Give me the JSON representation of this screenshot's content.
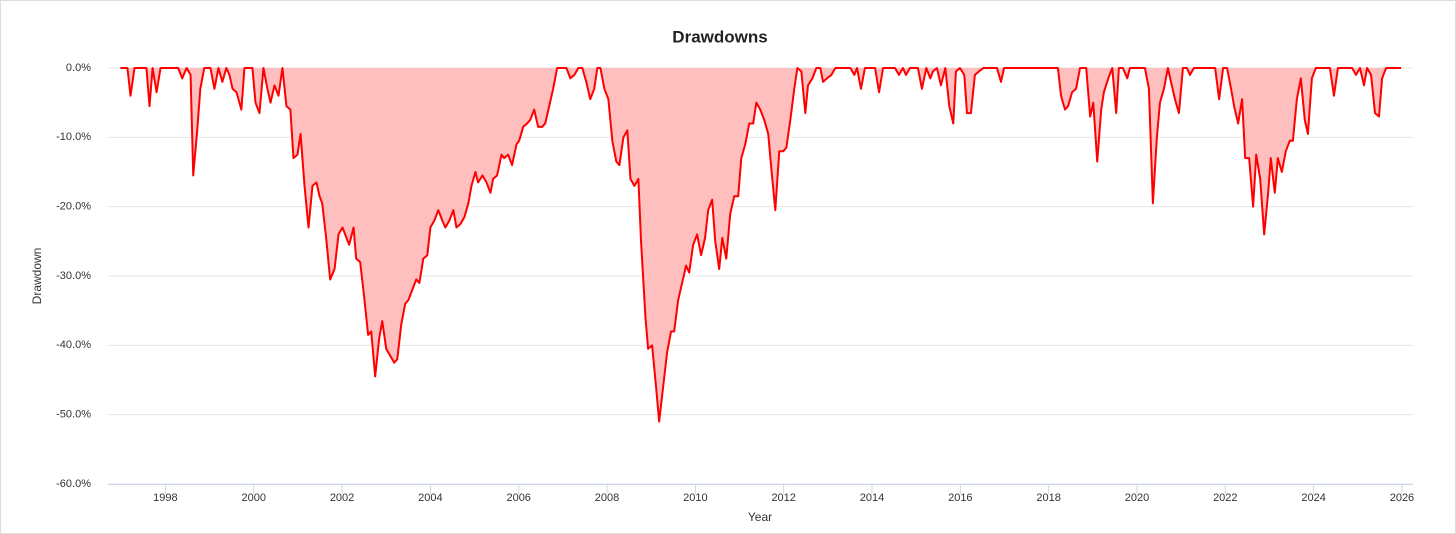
{
  "chart_data": {
    "type": "area",
    "title": "Drawdowns",
    "x_label": "Year",
    "y_label": "Drawdown",
    "color": "#ff0000",
    "fill_color": "#ffbfbf",
    "grid": true,
    "xlim": [
      1996.7,
      2026.25
    ],
    "xticks": [
      1998,
      2000,
      2002,
      2004,
      2006,
      2008,
      2010,
      2012,
      2014,
      2016,
      2018,
      2020,
      2022,
      2024,
      2026
    ],
    "ylim": [
      -60,
      0
    ],
    "yticks": [
      {
        "value": 0,
        "label": "0.0%"
      },
      {
        "value": -10,
        "label": "-10.0%"
      },
      {
        "value": -20,
        "label": "-20.0%"
      },
      {
        "value": -30,
        "label": "-30.0%"
      },
      {
        "value": -40,
        "label": "-40.0%"
      },
      {
        "value": -50,
        "label": "-50.0%"
      },
      {
        "value": -60,
        "label": "-60.0%"
      }
    ],
    "x": [
      1996.98,
      1997.14,
      1997.21,
      1997.3,
      1997.57,
      1997.64,
      1997.71,
      1997.8,
      1997.89,
      1998.29,
      1998.38,
      1998.48,
      1998.57,
      1998.63,
      1998.72,
      1998.79,
      1998.88,
      1999.02,
      1999.11,
      1999.2,
      1999.29,
      1999.38,
      1999.45,
      1999.52,
      1999.61,
      1999.72,
      1999.79,
      1999.97,
      2000.04,
      2000.13,
      2000.22,
      2000.31,
      2000.38,
      2000.47,
      2000.56,
      2000.65,
      2000.74,
      2000.83,
      2000.9,
      2000.99,
      2001.06,
      2001.15,
      2001.24,
      2001.33,
      2001.42,
      2001.49,
      2001.55,
      2001.64,
      2001.73,
      2001.83,
      2001.92,
      2002.01,
      2002.07,
      2002.16,
      2002.26,
      2002.32,
      2002.41,
      2002.5,
      2002.59,
      2002.66,
      2002.75,
      2002.84,
      2002.91,
      2003.0,
      2003.09,
      2003.18,
      2003.25,
      2003.34,
      2003.43,
      2003.5,
      2003.59,
      2003.68,
      2003.75,
      2003.84,
      2003.93,
      2004.0,
      2004.09,
      2004.18,
      2004.27,
      2004.34,
      2004.43,
      2004.52,
      2004.59,
      2004.68,
      2004.77,
      2004.86,
      2004.93,
      2005.02,
      2005.08,
      2005.18,
      2005.27,
      2005.36,
      2005.42,
      2005.51,
      2005.61,
      2005.67,
      2005.76,
      2005.85,
      2005.95,
      2006.01,
      2006.1,
      2006.19,
      2006.26,
      2006.35,
      2006.44,
      2006.53,
      2006.6,
      2006.69,
      2006.78,
      2006.87,
      2007.08,
      2007.17,
      2007.26,
      2007.35,
      2007.44,
      2007.53,
      2007.62,
      2007.71,
      2007.78,
      2007.85,
      2007.94,
      2008.03,
      2008.12,
      2008.21,
      2008.28,
      2008.37,
      2008.46,
      2008.53,
      2008.62,
      2008.71,
      2008.77,
      2008.87,
      2008.93,
      2009.02,
      2009.11,
      2009.18,
      2009.27,
      2009.36,
      2009.45,
      2009.52,
      2009.61,
      2009.7,
      2009.79,
      2009.86,
      2009.95,
      2010.04,
      2010.13,
      2010.22,
      2010.29,
      2010.38,
      2010.45,
      2010.54,
      2010.61,
      2010.7,
      2010.79,
      2010.88,
      2010.97,
      2011.04,
      2011.13,
      2011.22,
      2011.31,
      2011.38,
      2011.47,
      2011.56,
      2011.65,
      2011.72,
      2011.81,
      2011.9,
      2011.99,
      2012.06,
      2012.15,
      2012.24,
      2012.31,
      2012.4,
      2012.49,
      2012.55,
      2012.65,
      2012.74,
      2012.83,
      2012.89,
      2012.98,
      2013.08,
      2013.17,
      2013.51,
      2013.6,
      2013.66,
      2013.75,
      2013.84,
      2014.07,
      2014.16,
      2014.25,
      2014.52,
      2014.61,
      2014.7,
      2014.77,
      2014.86,
      2015.04,
      2015.13,
      2015.23,
      2015.32,
      2015.38,
      2015.47,
      2015.56,
      2015.66,
      2015.75,
      2015.84,
      2015.9,
      2015.99,
      2016.09,
      2016.15,
      2016.24,
      2016.33,
      2016.42,
      2016.52,
      2016.83,
      2016.92,
      2016.99,
      2018.21,
      2018.28,
      2018.37,
      2018.44,
      2018.53,
      2018.62,
      2018.71,
      2018.85,
      2018.94,
      2019.01,
      2019.1,
      2019.19,
      2019.25,
      2019.35,
      2019.44,
      2019.53,
      2019.59,
      2019.68,
      2019.78,
      2019.84,
      2020.18,
      2020.27,
      2020.36,
      2020.45,
      2020.52,
      2020.61,
      2020.7,
      2020.77,
      2020.86,
      2020.95,
      2021.04,
      2021.13,
      2021.2,
      2021.29,
      2021.77,
      2021.86,
      2021.95,
      2022.04,
      2022.13,
      2022.2,
      2022.29,
      2022.38,
      2022.45,
      2022.54,
      2022.63,
      2022.7,
      2022.79,
      2022.88,
      2022.97,
      2023.03,
      2023.12,
      2023.19,
      2023.28,
      2023.37,
      2023.46,
      2023.53,
      2023.62,
      2023.71,
      2023.8,
      2023.87,
      2023.96,
      2024.05,
      2024.37,
      2024.46,
      2024.55,
      2024.87,
      2024.96,
      2025.05,
      2025.14,
      2025.21,
      2025.3,
      2025.39,
      2025.48,
      2025.55,
      2025.64,
      2025.98
    ],
    "values": [
      0,
      0,
      -4,
      0,
      0,
      -5.5,
      0,
      -3.5,
      0,
      0,
      -1.5,
      0,
      -1,
      -15.5,
      -9,
      -3,
      0,
      0,
      -3,
      0,
      -2,
      0,
      -1,
      -3,
      -3.5,
      -6,
      0,
      0,
      -5,
      -6.5,
      0,
      -3,
      -5,
      -2.5,
      -4,
      0,
      -5.5,
      -6,
      -13,
      -12.5,
      -9.5,
      -17,
      -23,
      -17,
      -16.5,
      -18.5,
      -19.5,
      -24.5,
      -30.5,
      -29,
      -24,
      -23,
      -24,
      -25.5,
      -23,
      -27.5,
      -28,
      -33,
      -38.5,
      -38,
      -44.5,
      -39,
      -36.5,
      -40.5,
      -41.5,
      -42.5,
      -42,
      -37,
      -34,
      -33.5,
      -32,
      -30.5,
      -31,
      -27.5,
      -27,
      -23,
      -22,
      -20.5,
      -22,
      -23,
      -22,
      -20.5,
      -23,
      -22.5,
      -21.5,
      -19.5,
      -17,
      -15,
      -16.5,
      -15.5,
      -16.5,
      -18,
      -16,
      -15.5,
      -12.5,
      -13,
      -12.5,
      -14,
      -11,
      -10.5,
      -8.5,
      -8,
      -7.5,
      -6,
      -8.5,
      -8.5,
      -8,
      -5.5,
      -3,
      0,
      0,
      -1.5,
      -1,
      0,
      0,
      -2,
      -4.5,
      -3,
      0,
      0,
      -3,
      -4.5,
      -10.5,
      -13.5,
      -14,
      -10,
      -9,
      -16,
      -17,
      -16,
      -25,
      -36,
      -40.5,
      -40,
      -46,
      -51,
      -46,
      -41,
      -38,
      -38,
      -33.5,
      -31,
      -28.5,
      -29.5,
      -25.5,
      -24,
      -27,
      -24.5,
      -20.5,
      -19,
      -25,
      -29,
      -24.5,
      -27.5,
      -21,
      -18.5,
      -18.5,
      -13,
      -11,
      -8,
      -8,
      -5,
      -6,
      -7.5,
      -9.5,
      -14.5,
      -20.5,
      -12,
      -12,
      -11.5,
      -7.5,
      -3,
      0,
      -0.5,
      -6.5,
      -2.5,
      -1.5,
      0,
      0,
      -2,
      -1.5,
      -1,
      0,
      0,
      -1,
      0,
      -3,
      0,
      0,
      -3.5,
      0,
      0,
      -1,
      0,
      -1,
      0,
      0,
      -3,
      0,
      -1.5,
      -0.5,
      0,
      -2.5,
      0,
      -5.5,
      -8,
      -0.5,
      0,
      -1,
      -6.5,
      -6.5,
      -1,
      -0.5,
      0,
      0,
      -2,
      0,
      0,
      -4,
      -6,
      -5.5,
      -3.5,
      -3,
      0,
      0,
      -7,
      -5,
      -13.5,
      -6,
      -3.5,
      -1.5,
      0,
      -6.5,
      0,
      0,
      -1.5,
      0,
      0,
      -3,
      -19.5,
      -10,
      -5,
      -3,
      0,
      -2,
      -4.5,
      -6.5,
      0,
      0,
      -1,
      0,
      0,
      -4.5,
      0,
      0,
      -3,
      -5.5,
      -8,
      -4.5,
      -13,
      -13,
      -20,
      -12.5,
      -16,
      -24,
      -18,
      -13,
      -18,
      -13,
      -15,
      -12,
      -10.5,
      -10.5,
      -4.5,
      -1.5,
      -7.5,
      -9.5,
      -1.5,
      0,
      0,
      -4,
      0,
      0,
      -1,
      0,
      -2.5,
      0,
      -1,
      -6.5,
      -7,
      -1.5,
      0,
      0
    ]
  }
}
